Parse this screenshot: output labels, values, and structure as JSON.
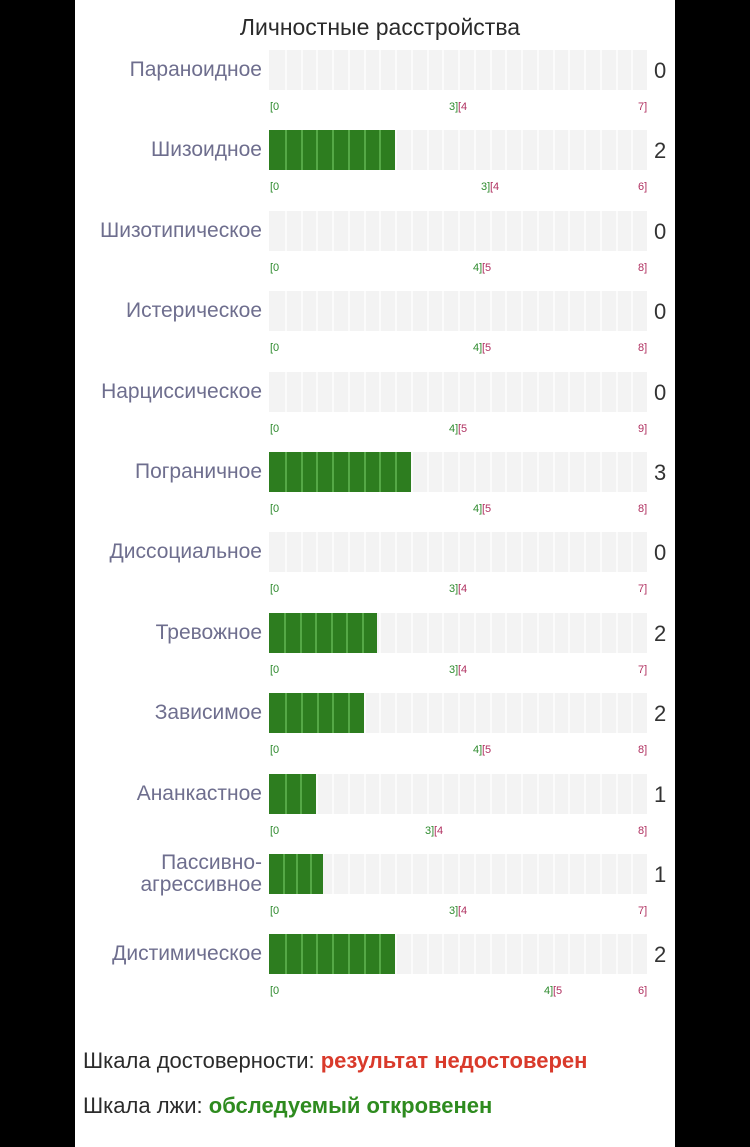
{
  "chart_data": {
    "type": "bar",
    "title": "Личностные расстройства",
    "rows": [
      {
        "label": [
          "Параноидное"
        ],
        "value": 0,
        "max": 7,
        "norm_low": "[0",
        "norm_mid_green": "3]",
        "norm_mid_red": "[4",
        "norm_high": "7]",
        "split": 3.5
      },
      {
        "label": [
          "Шизоидное"
        ],
        "value": 2,
        "max": 6,
        "norm_low": "[0",
        "norm_mid_green": "3]",
        "norm_mid_red": "[4",
        "norm_high": "6]",
        "split": 3.5
      },
      {
        "label": [
          "Шизотипическое"
        ],
        "value": 0,
        "max": 8,
        "norm_low": "[0",
        "norm_mid_green": "4]",
        "norm_mid_red": "[5",
        "norm_high": "8]",
        "split": 4.5
      },
      {
        "label": [
          "Истерическое"
        ],
        "value": 0,
        "max": 8,
        "norm_low": "[0",
        "norm_mid_green": "4]",
        "norm_mid_red": "[5",
        "norm_high": "8]",
        "split": 4.5
      },
      {
        "label": [
          "Нарциссическое"
        ],
        "value": 0,
        "max": 9,
        "norm_low": "[0",
        "norm_mid_green": "4]",
        "norm_mid_red": "[5",
        "norm_high": "9]",
        "split": 4.5
      },
      {
        "label": [
          "Пограничное"
        ],
        "value": 3,
        "max": 8,
        "norm_low": "[0",
        "norm_mid_green": "4]",
        "norm_mid_red": "[5",
        "norm_high": "8]",
        "split": 4.5
      },
      {
        "label": [
          "Диссоциальное"
        ],
        "value": 0,
        "max": 7,
        "norm_low": "[0",
        "norm_mid_green": "3]",
        "norm_mid_red": "[4",
        "norm_high": "7]",
        "split": 3.5
      },
      {
        "label": [
          "Тревожное"
        ],
        "value": 2,
        "max": 7,
        "norm_low": "[0",
        "norm_mid_green": "3]",
        "norm_mid_red": "[4",
        "norm_high": "7]",
        "split": 3.5
      },
      {
        "label": [
          "Зависимое"
        ],
        "value": 2,
        "max": 8,
        "norm_low": "[0",
        "norm_mid_green": "4]",
        "norm_mid_red": "[5",
        "norm_high": "8]",
        "split": 4.5
      },
      {
        "label": [
          "Ананкастное"
        ],
        "value": 1,
        "max": 8,
        "norm_low": "[0",
        "norm_mid_green": "3]",
        "norm_mid_red": "[4",
        "norm_high": "8]",
        "split": 3.5
      },
      {
        "label": [
          "Пассивно-",
          "агрессивное"
        ],
        "value": 1,
        "max": 7,
        "norm_low": "[0",
        "norm_mid_green": "3]",
        "norm_mid_red": "[4",
        "norm_high": "7]",
        "split": 3.5
      },
      {
        "label": [
          "Дистимическое"
        ],
        "value": 2,
        "max": 6,
        "norm_low": "[0",
        "norm_mid_green": "4]",
        "norm_mid_red": "[5",
        "norm_high": "6]",
        "split": 4.5
      }
    ]
  },
  "summary": {
    "reliability_label": "Шкала достоверности:",
    "reliability_value": "результат недостоверен",
    "reliability_color": "#d93a2b",
    "lie_label": "Шкала лжи:",
    "lie_value": "обследуемый откровенен",
    "lie_color": "#2e8b1f"
  },
  "colors": {
    "fill": "#2d7d1f",
    "track": "#f3f3f3",
    "tick_green": "#2e8b2e",
    "tick_red": "#b03060"
  }
}
